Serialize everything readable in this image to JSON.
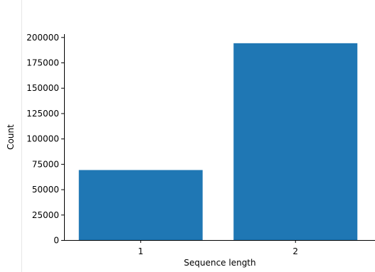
{
  "chart_data": {
    "type": "bar",
    "categories": [
      "1",
      "2"
    ],
    "values": [
      69000,
      194000
    ],
    "xlabel": "Sequence length",
    "ylabel": "Count",
    "ylim": [
      0,
      203000
    ],
    "yticks": [
      0,
      25000,
      50000,
      75000,
      100000,
      125000,
      150000,
      175000,
      200000
    ],
    "ytick_labels": [
      "0",
      "25000",
      "50000",
      "75000",
      "100000",
      "125000",
      "150000",
      "175000",
      "200000"
    ],
    "bar_color": "#1f77b4",
    "grid": false,
    "legend": "none"
  }
}
